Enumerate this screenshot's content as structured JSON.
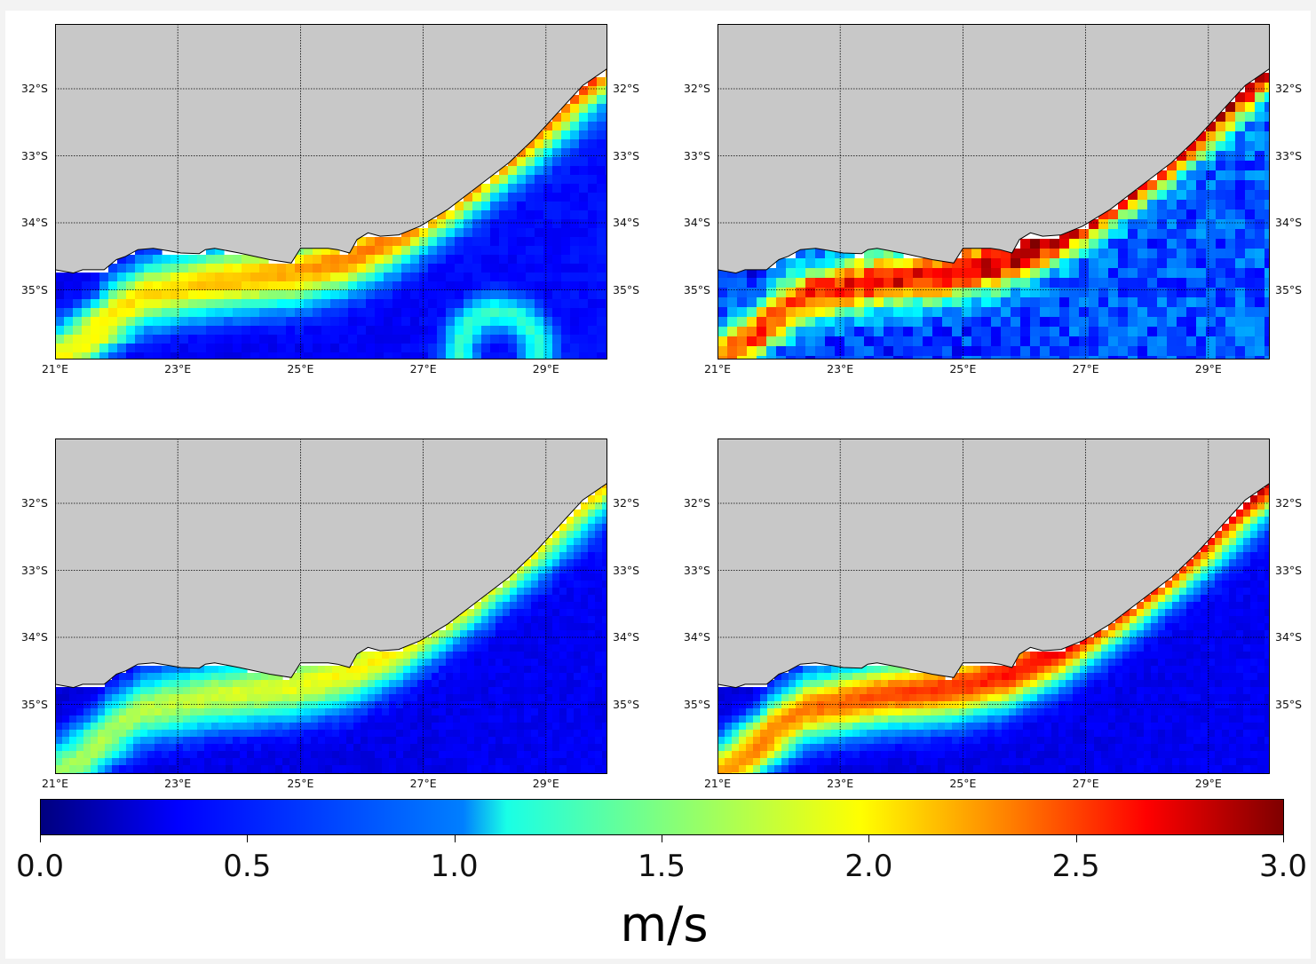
{
  "chart_data": [
    {
      "type": "heatmap",
      "panel": "top-left",
      "style": "smooth-coarse",
      "core_speed": 2.2,
      "background_speed": 0.35,
      "eddy": true,
      "x_ticks": [
        "21°E",
        "23°E",
        "25°E",
        "27°E",
        "29°E"
      ],
      "y_ticks": [
        "32°S",
        "33°S",
        "34°S",
        "35°S"
      ],
      "xlim": [
        21,
        30
      ],
      "ylim": [
        -36,
        -31
      ]
    },
    {
      "type": "heatmap",
      "panel": "top-right",
      "style": "noisy",
      "core_speed": 2.8,
      "background_speed": 0.55,
      "eddy": false,
      "x_ticks": [
        "21°E",
        "23°E",
        "25°E",
        "27°E",
        "29°E"
      ],
      "y_ticks": [
        "32°S",
        "33°S",
        "34°S",
        "35°S"
      ],
      "xlim": [
        21,
        30
      ],
      "ylim": [
        -36,
        -31
      ]
    },
    {
      "type": "heatmap",
      "panel": "bottom-left",
      "style": "smooth",
      "core_speed": 1.85,
      "background_speed": 0.3,
      "eddy": false,
      "x_ticks": [
        "21°E",
        "23°E",
        "25°E",
        "27°E",
        "29°E"
      ],
      "y_ticks": [
        "32°S",
        "33°S",
        "34°S",
        "35°S"
      ],
      "xlim": [
        21,
        30
      ],
      "ylim": [
        -36,
        -31
      ]
    },
    {
      "type": "heatmap",
      "panel": "bottom-right",
      "style": "smooth",
      "core_speed": 2.55,
      "background_speed": 0.3,
      "eddy": false,
      "x_ticks": [
        "21°E",
        "23°E",
        "25°E",
        "27°E",
        "29°E"
      ],
      "y_ticks": [
        "32°S",
        "33°S",
        "34°S",
        "35°S"
      ],
      "xlim": [
        21,
        30
      ],
      "ylim": [
        -36,
        -31
      ]
    }
  ],
  "colorbar": {
    "ticks": [
      "0.0",
      "0.5",
      "1.0",
      "1.5",
      "2.0",
      "2.5",
      "3.0"
    ],
    "range": [
      0,
      3
    ],
    "colormap": "jet",
    "unit": "m/s"
  },
  "colors": {
    "land": "#c8c8c8",
    "grid": "#000000"
  }
}
